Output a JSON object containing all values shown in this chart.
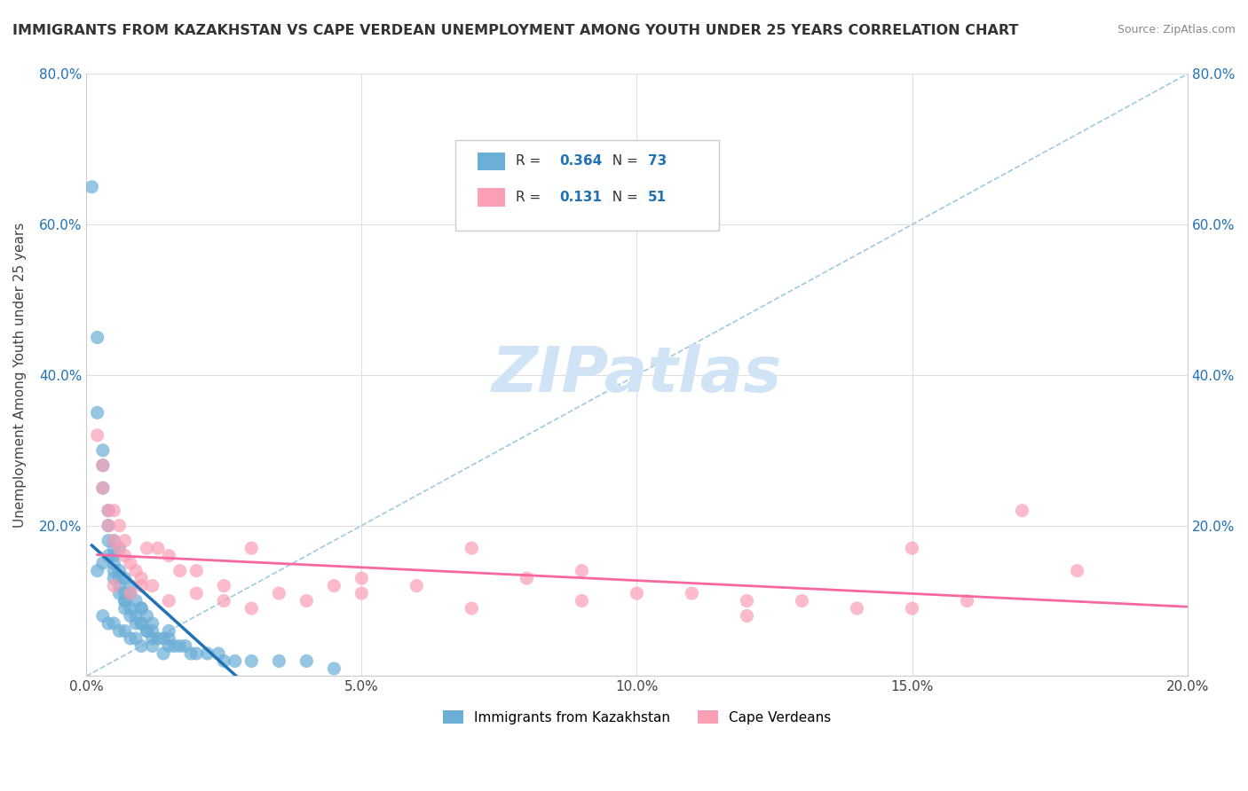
{
  "title": "IMMIGRANTS FROM KAZAKHSTAN VS CAPE VERDEAN UNEMPLOYMENT AMONG YOUTH UNDER 25 YEARS CORRELATION CHART",
  "source": "Source: ZipAtlas.com",
  "ylabel": "Unemployment Among Youth under 25 years",
  "xlabel": "",
  "xlim": [
    0.0,
    0.2
  ],
  "ylim": [
    0.0,
    0.8
  ],
  "xticks": [
    0.0,
    0.05,
    0.1,
    0.15,
    0.2
  ],
  "yticks": [
    0.0,
    0.2,
    0.4,
    0.6,
    0.8
  ],
  "xticklabels": [
    "0.0%",
    "5.0%",
    "10.0%",
    "15.0%",
    "20.0%"
  ],
  "yticklabels": [
    "",
    "20.0%",
    "40.0%",
    "60.0%",
    "80.0%"
  ],
  "kazakhstan_color": "#6baed6",
  "capeverde_color": "#fa9fb5",
  "kazakhstan_trend_color": "#2171b5",
  "capeverde_trend_color": "#f768a1",
  "diag_line_color": "#9ecae1",
  "legend_R_kaz": "0.364",
  "legend_N_kaz": "73",
  "legend_R_cv": "0.131",
  "legend_N_cv": "51",
  "watermark": "ZIPatlas",
  "watermark_color": "#d0e4f5",
  "kazakhstan_x": [
    0.001,
    0.002,
    0.002,
    0.003,
    0.003,
    0.003,
    0.004,
    0.004,
    0.004,
    0.005,
    0.005,
    0.005,
    0.005,
    0.005,
    0.006,
    0.006,
    0.006,
    0.007,
    0.007,
    0.007,
    0.007,
    0.008,
    0.008,
    0.009,
    0.009,
    0.01,
    0.01,
    0.011,
    0.011,
    0.012,
    0.012,
    0.013,
    0.014,
    0.015,
    0.015,
    0.016,
    0.017,
    0.018,
    0.019,
    0.02,
    0.022,
    0.024,
    0.025,
    0.027,
    0.03,
    0.035,
    0.04,
    0.045,
    0.005,
    0.006,
    0.004,
    0.003,
    0.002,
    0.006,
    0.007,
    0.008,
    0.008,
    0.009,
    0.01,
    0.01,
    0.011,
    0.012,
    0.015,
    0.003,
    0.004,
    0.005,
    0.006,
    0.007,
    0.008,
    0.009,
    0.01,
    0.012,
    0.014
  ],
  "kazakhstan_y": [
    0.65,
    0.45,
    0.35,
    0.3,
    0.28,
    0.25,
    0.22,
    0.2,
    0.18,
    0.17,
    0.16,
    0.15,
    0.14,
    0.13,
    0.13,
    0.12,
    0.11,
    0.11,
    0.1,
    0.1,
    0.09,
    0.09,
    0.08,
    0.08,
    0.07,
    0.07,
    0.07,
    0.06,
    0.06,
    0.06,
    0.05,
    0.05,
    0.05,
    0.05,
    0.04,
    0.04,
    0.04,
    0.04,
    0.03,
    0.03,
    0.03,
    0.03,
    0.02,
    0.02,
    0.02,
    0.02,
    0.02,
    0.01,
    0.18,
    0.17,
    0.16,
    0.15,
    0.14,
    0.14,
    0.13,
    0.12,
    0.11,
    0.1,
    0.09,
    0.09,
    0.08,
    0.07,
    0.06,
    0.08,
    0.07,
    0.07,
    0.06,
    0.06,
    0.05,
    0.05,
    0.04,
    0.04,
    0.03
  ],
  "capeverde_x": [
    0.002,
    0.003,
    0.003,
    0.004,
    0.004,
    0.005,
    0.005,
    0.006,
    0.006,
    0.007,
    0.007,
    0.008,
    0.009,
    0.01,
    0.011,
    0.012,
    0.013,
    0.015,
    0.017,
    0.02,
    0.025,
    0.03,
    0.035,
    0.04,
    0.045,
    0.05,
    0.06,
    0.07,
    0.08,
    0.09,
    0.1,
    0.11,
    0.12,
    0.13,
    0.14,
    0.15,
    0.16,
    0.17,
    0.18,
    0.005,
    0.008,
    0.01,
    0.015,
    0.02,
    0.025,
    0.03,
    0.05,
    0.07,
    0.09,
    0.12,
    0.15
  ],
  "capeverde_y": [
    0.32,
    0.28,
    0.25,
    0.22,
    0.2,
    0.18,
    0.22,
    0.17,
    0.2,
    0.16,
    0.18,
    0.15,
    0.14,
    0.13,
    0.17,
    0.12,
    0.17,
    0.16,
    0.14,
    0.14,
    0.12,
    0.17,
    0.11,
    0.1,
    0.12,
    0.13,
    0.12,
    0.17,
    0.13,
    0.14,
    0.11,
    0.11,
    0.1,
    0.1,
    0.09,
    0.09,
    0.1,
    0.22,
    0.14,
    0.12,
    0.11,
    0.12,
    0.1,
    0.11,
    0.1,
    0.09,
    0.11,
    0.09,
    0.1,
    0.08,
    0.17
  ],
  "background_color": "#ffffff",
  "grid_color": "#e0e0e0"
}
